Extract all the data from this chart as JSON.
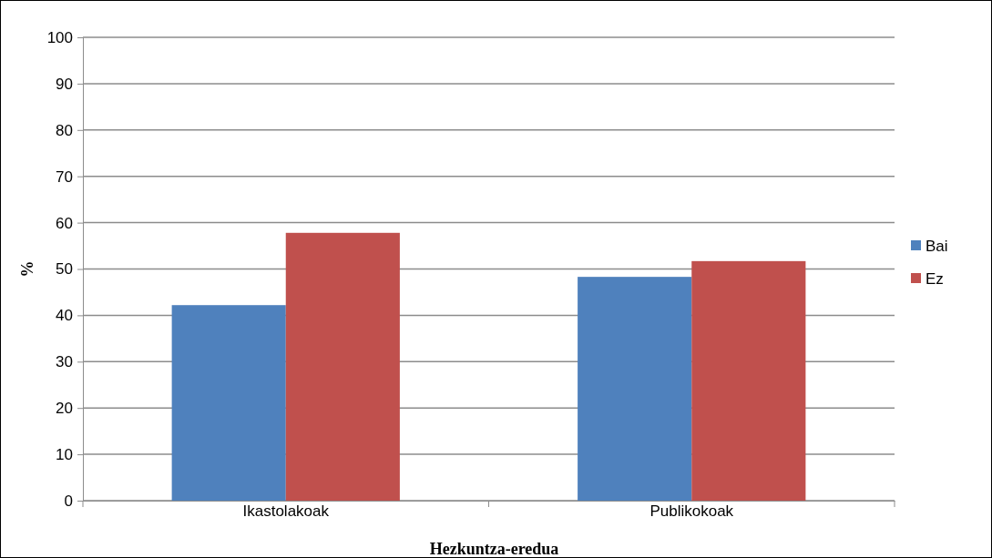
{
  "chart_data": {
    "type": "bar",
    "xlabel": "Hezkuntza-eredua",
    "ylabel": "%",
    "categories": [
      "Ikastolakoak",
      "Publikokoak"
    ],
    "series": [
      {
        "name": "Bai",
        "color": "#4f81bd",
        "values": [
          42.2,
          48.3
        ]
      },
      {
        "name": "Ez",
        "color": "#c0504d",
        "values": [
          57.8,
          51.7
        ]
      }
    ],
    "ylim": [
      0,
      100
    ],
    "yticks": [
      0,
      10,
      20,
      30,
      40,
      50,
      60,
      70,
      80,
      90,
      100
    ],
    "grid": "y",
    "legend": "right"
  }
}
